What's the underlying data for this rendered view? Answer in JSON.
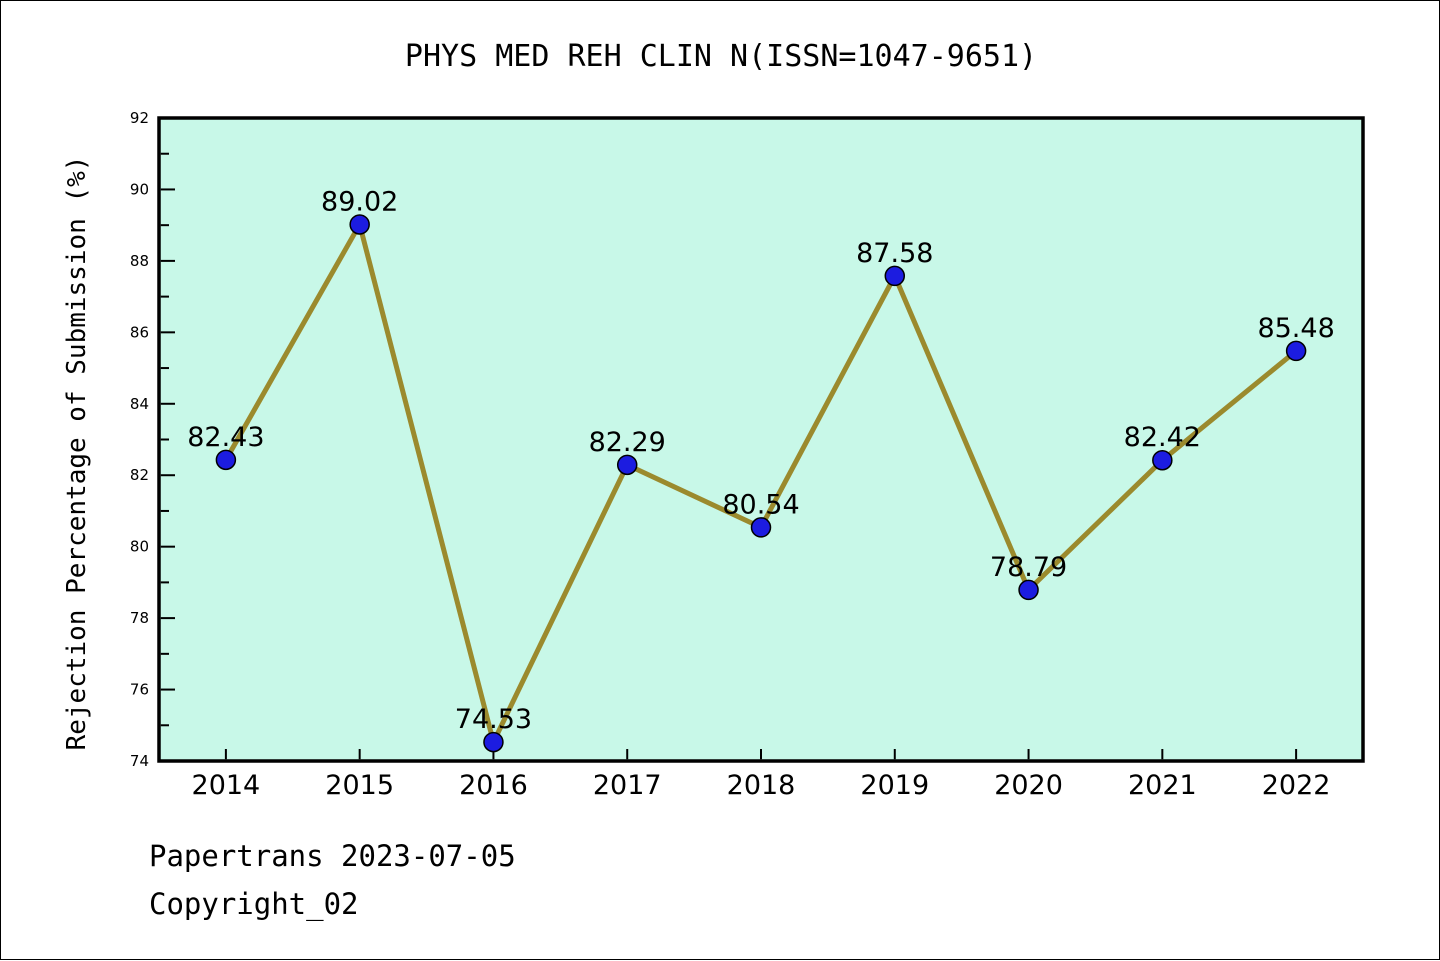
{
  "title": "PHYS MED REH CLIN N(ISSN=1047-9651)",
  "footer": {
    "line1": "Papertrans 2023-07-05",
    "line2": "Copyright_02"
  },
  "chart_data": {
    "type": "line",
    "title": "PHYS MED REH CLIN N(ISSN=1047-9651)",
    "xlabel": "",
    "ylabel": "Rejection Percentage of Submission (%)",
    "x": [
      2014,
      2015,
      2016,
      2017,
      2018,
      2019,
      2020,
      2021,
      2022
    ],
    "values": [
      82.43,
      89.02,
      74.53,
      82.29,
      80.54,
      87.58,
      78.79,
      82.42,
      85.48
    ],
    "point_labels": [
      "82.43",
      "89.02",
      "74.53",
      "82.29",
      "80.54",
      "87.58",
      "78.79",
      "82.42",
      "85.48"
    ],
    "xtick_labels": [
      "2014",
      "2015",
      "2016",
      "2017",
      "2018",
      "2019",
      "2020",
      "2021",
      "2022"
    ],
    "ylim": [
      74,
      92
    ],
    "xlim": [
      2013.5,
      2022.5
    ],
    "y_major_step": 2,
    "y_minor_step": 1,
    "grid": false,
    "legend": null,
    "colors": {
      "line": "#9b8a2d",
      "marker_fill": "#1c1ce0",
      "marker_edge": "#000000",
      "plot_background": "#c8f8e8",
      "page_background": "#ffffff",
      "frame": "#000000",
      "text": "#000000"
    }
  }
}
